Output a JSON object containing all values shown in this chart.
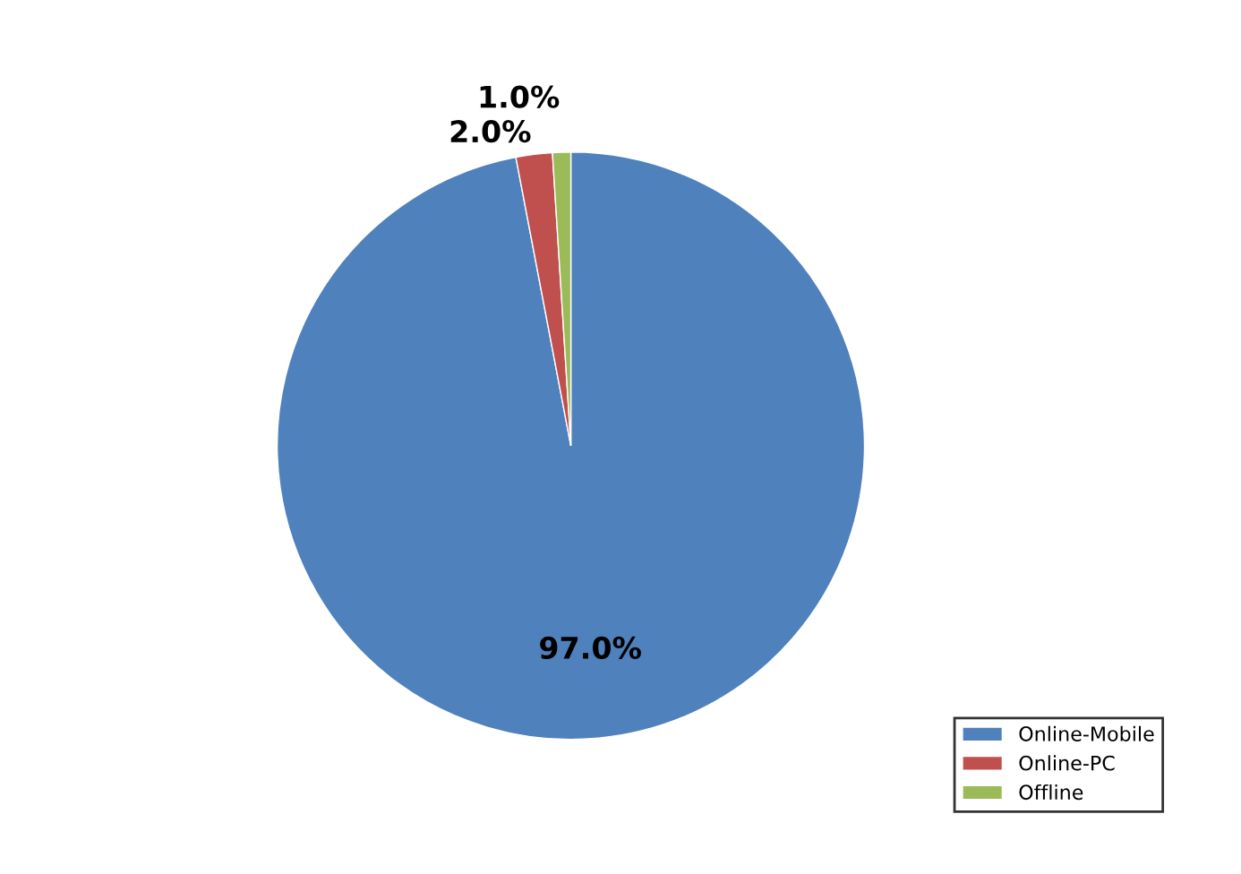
{
  "chart_data": {
    "type": "pie",
    "categories": [
      "Online-Mobile",
      "Online-PC",
      "Offline"
    ],
    "values": [
      97.0,
      2.0,
      1.0
    ],
    "colors": [
      "#4f81bd",
      "#c0504d",
      "#9bbb59"
    ],
    "value_labels": [
      "97.0%",
      "2.0%",
      "1.0%"
    ],
    "legend": "bottom right"
  }
}
